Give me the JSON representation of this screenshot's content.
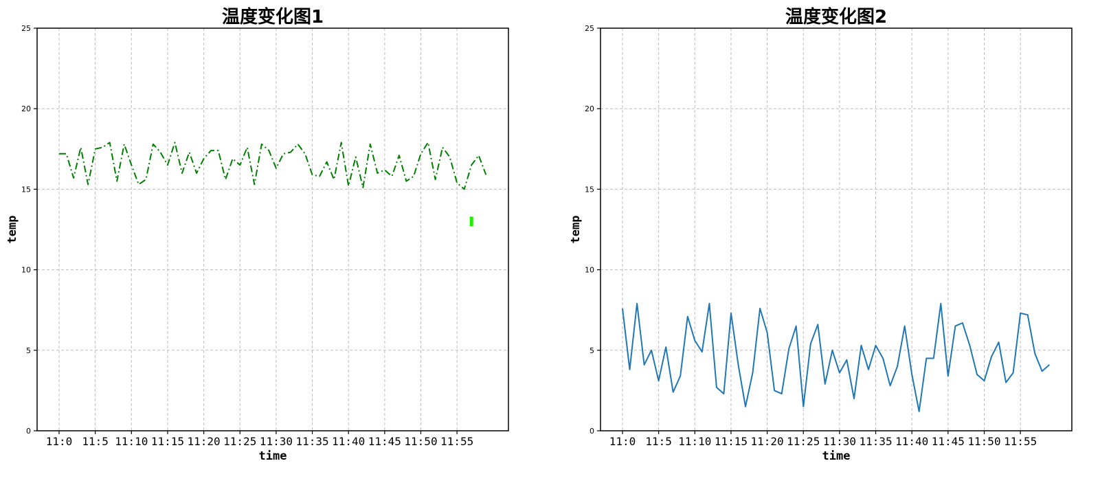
{
  "chart_data": [
    {
      "type": "line",
      "title": "温度变化图1",
      "xlabel": "time",
      "ylabel": "temp",
      "categories_minutes": [
        0,
        1,
        2,
        3,
        4,
        5,
        6,
        7,
        8,
        9,
        10,
        11,
        12,
        13,
        14,
        15,
        16,
        17,
        18,
        19,
        20,
        21,
        22,
        23,
        24,
        25,
        26,
        27,
        28,
        29,
        30,
        31,
        32,
        33,
        34,
        35,
        36,
        37,
        38,
        39,
        40,
        41,
        42,
        43,
        44,
        45,
        46,
        47,
        48,
        49,
        50,
        51,
        52,
        53,
        54,
        55,
        56,
        57,
        58,
        59
      ],
      "xticks": [
        "11:0",
        "11:5",
        "11:10",
        "11:15",
        "11:20",
        "11:25",
        "11:30",
        "11:35",
        "11:40",
        "11:45",
        "11:50",
        "11:55"
      ],
      "xtick_minutes": [
        0,
        5,
        10,
        15,
        20,
        25,
        30,
        35,
        40,
        45,
        50,
        55
      ],
      "ylim": [
        0,
        25
      ],
      "yticks": [
        0,
        5,
        10,
        15,
        20,
        25
      ],
      "grid": true,
      "series": [
        {
          "line_style": "dashdot",
          "color": "#007f00",
          "values": [
            17.2,
            17.2,
            15.7,
            17.6,
            15.3,
            17.5,
            17.6,
            17.9,
            15.5,
            17.8,
            16.5,
            15.3,
            15.6,
            17.8,
            17.3,
            16.5,
            17.9,
            16.0,
            17.3,
            16.0,
            16.9,
            17.4,
            17.4,
            15.6,
            16.9,
            16.5,
            17.6,
            15.3,
            17.8,
            17.4,
            16.3,
            17.2,
            17.3,
            17.8,
            17.2,
            15.9,
            15.8,
            16.7,
            15.6,
            17.9,
            15.2,
            17.0,
            15.1,
            17.8,
            16.0,
            16.2,
            15.8,
            17.1,
            15.5,
            15.8,
            17.2,
            17.9,
            15.6,
            17.6,
            17.0,
            15.4,
            15.0,
            16.5,
            17.1,
            15.9
          ]
        }
      ],
      "marker": {
        "x_minute": 57,
        "y": 13.0,
        "color": "#22ee00"
      }
    },
    {
      "type": "line",
      "title": "温度变化图2",
      "xlabel": "time",
      "ylabel": "temp",
      "categories_minutes": [
        0,
        1,
        2,
        3,
        4,
        5,
        6,
        7,
        8,
        9,
        10,
        11,
        12,
        13,
        14,
        15,
        16,
        17,
        18,
        19,
        20,
        21,
        22,
        23,
        24,
        25,
        26,
        27,
        28,
        29,
        30,
        31,
        32,
        33,
        34,
        35,
        36,
        37,
        38,
        39,
        40,
        41,
        42,
        43,
        44,
        45,
        46,
        47,
        48,
        49,
        50,
        51,
        52,
        53,
        54,
        55,
        56,
        57,
        58,
        59
      ],
      "xticks": [
        "11:0",
        "11:5",
        "11:10",
        "11:15",
        "11:20",
        "11:25",
        "11:30",
        "11:35",
        "11:40",
        "11:45",
        "11:50",
        "11:55"
      ],
      "xtick_minutes": [
        0,
        5,
        10,
        15,
        20,
        25,
        30,
        35,
        40,
        45,
        50,
        55
      ],
      "ylim": [
        0,
        25
      ],
      "yticks": [
        0,
        5,
        10,
        15,
        20,
        25
      ],
      "grid": true,
      "series": [
        {
          "line_style": "solid",
          "color": "#1f77b4",
          "values": [
            7.6,
            3.8,
            7.9,
            4.1,
            5.0,
            3.1,
            5.2,
            2.4,
            3.4,
            7.1,
            5.6,
            4.9,
            7.9,
            2.7,
            2.3,
            7.3,
            4.1,
            1.5,
            3.6,
            7.6,
            6.1,
            2.5,
            2.3,
            5.1,
            6.5,
            1.5,
            5.4,
            6.6,
            2.9,
            5.0,
            3.6,
            4.4,
            2.0,
            5.3,
            3.8,
            5.3,
            4.5,
            2.8,
            4.0,
            6.5,
            3.5,
            1.2,
            4.5,
            4.5,
            7.9,
            3.4,
            6.5,
            6.7,
            5.3,
            3.5,
            3.1,
            4.6,
            5.5,
            3.0,
            3.6,
            7.3,
            7.2,
            4.8,
            3.7,
            4.1
          ]
        }
      ]
    }
  ]
}
